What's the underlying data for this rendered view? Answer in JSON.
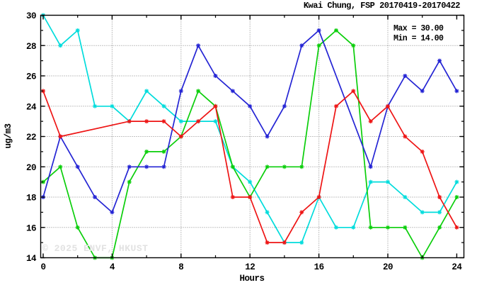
{
  "chart_data": {
    "type": "line",
    "title": "Kwai Chung, FSP 20170419-20170422",
    "xlabel": "Hours",
    "ylabel": "ug/m3",
    "xlim": [
      0,
      24
    ],
    "ylim": [
      14,
      30
    ],
    "grid": "dotted",
    "legend_position": "none",
    "annotations": {
      "max_label": "Max = 30.00",
      "min_label": "Min = 14.00"
    },
    "watermark": "© 2025 ENVF, HKUST",
    "x": [
      0,
      1,
      2,
      3,
      4,
      5,
      6,
      7,
      8,
      9,
      10,
      11,
      12,
      13,
      14,
      15,
      16,
      17,
      18,
      19,
      20,
      21,
      22,
      23,
      24
    ],
    "x_major_ticks": [
      0,
      4,
      8,
      12,
      16,
      20,
      24
    ],
    "x_minor_step": 2,
    "y_major_ticks": [
      14,
      16,
      18,
      20,
      22,
      24,
      26,
      28,
      30
    ],
    "y_minor_step": 1,
    "series": [
      {
        "id": "cyan-series",
        "color": "#00dcdc",
        "marker": "asterisk",
        "values": [
          30,
          28,
          29,
          24,
          24,
          23,
          25,
          24,
          23,
          23,
          23,
          20,
          19,
          17,
          15,
          15,
          18,
          16,
          16,
          19,
          19,
          18,
          17,
          17,
          19
        ]
      },
      {
        "id": "green-series",
        "color": "#0ace0a",
        "marker": "asterisk",
        "values": [
          19,
          20,
          16,
          14,
          14,
          19,
          21,
          21,
          22,
          25,
          24,
          20,
          18,
          20,
          20,
          20,
          28,
          29,
          28,
          16,
          16,
          16,
          14,
          16,
          18
        ]
      },
      {
        "id": "blue-series",
        "color": "#2424d4",
        "marker": "asterisk",
        "values": [
          18,
          22,
          20,
          18,
          17,
          20,
          20,
          20,
          25,
          28,
          26,
          25,
          24,
          22,
          24,
          28,
          29,
          null,
          null,
          20,
          24,
          26,
          25,
          27,
          25
        ]
      },
      {
        "id": "red-series",
        "color": "#ee1414",
        "marker": "asterisk",
        "values": [
          25,
          22,
          null,
          null,
          null,
          23,
          23,
          23,
          22,
          23,
          24,
          18,
          18,
          15,
          15,
          17,
          18,
          24,
          25,
          23,
          24,
          22,
          21,
          18,
          16
        ]
      }
    ]
  }
}
